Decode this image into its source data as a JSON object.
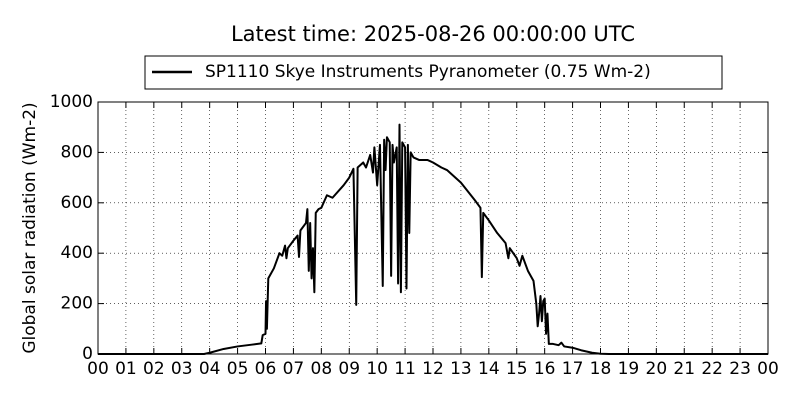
{
  "chart_data": {
    "type": "line",
    "title": "Latest time: 2025-08-26 00:00:00 UTC",
    "y_label": "Global solar radiation (Wm-2)",
    "x": [
      0,
      3.8,
      4.0,
      4.5,
      5,
      5.5,
      5.85,
      5.9,
      6.0,
      6.02,
      6.05,
      6.1,
      6.3,
      6.5,
      6.6,
      6.7,
      6.75,
      6.8,
      7.0,
      7.15,
      7.2,
      7.25,
      7.45,
      7.5,
      7.55,
      7.6,
      7.65,
      7.7,
      7.75,
      7.8,
      7.9,
      8.0,
      8.2,
      8.4,
      8.8,
      9.0,
      9.15,
      9.25,
      9.3,
      9.5,
      9.6,
      9.75,
      9.85,
      9.9,
      10.0,
      10.1,
      10.2,
      10.25,
      10.3,
      10.35,
      10.45,
      10.5,
      10.55,
      10.6,
      10.7,
      10.75,
      10.8,
      10.85,
      10.9,
      11.0,
      11.05,
      11.1,
      11.15,
      11.2,
      11.3,
      11.5,
      11.8,
      12.0,
      12.3,
      12.5,
      13.0,
      13.5,
      13.7,
      13.75,
      13.8,
      14.0,
      14.3,
      14.6,
      14.7,
      14.75,
      15.0,
      15.1,
      15.2,
      15.4,
      15.6,
      15.7,
      15.75,
      15.8,
      15.85,
      15.9,
      15.95,
      16.0,
      16.05,
      16.1,
      16.15,
      16.3,
      16.5,
      16.6,
      16.7,
      17.0,
      17.3,
      17.7,
      18.0,
      18.3,
      24
    ],
    "series": [
      {
        "name": "SP1110 Skye Instruments Pyranometer (0.75 Wm-2)",
        "color": "#000000",
        "values": [
          0,
          0,
          5,
          20,
          30,
          37,
          42,
          75,
          80,
          210,
          100,
          300,
          340,
          400,
          390,
          430,
          380,
          420,
          450,
          470,
          385,
          490,
          520,
          575,
          330,
          520,
          300,
          420,
          245,
          560,
          575,
          580,
          630,
          620,
          670,
          700,
          735,
          195,
          740,
          760,
          740,
          790,
          720,
          820,
          670,
          830,
          270,
          850,
          730,
          860,
          840,
          310,
          830,
          760,
          820,
          280,
          910,
          245,
          840,
          820,
          260,
          830,
          480,
          800,
          780,
          770,
          770,
          760,
          740,
          730,
          680,
          610,
          580,
          305,
          560,
          530,
          480,
          440,
          380,
          420,
          380,
          350,
          390,
          330,
          290,
          200,
          110,
          160,
          230,
          130,
          210,
          220,
          80,
          160,
          40,
          40,
          35,
          45,
          30,
          25,
          15,
          5,
          1,
          0,
          0
        ]
      }
    ],
    "xlim": [
      0,
      24
    ],
    "xticks": [
      {
        "value": 0,
        "label": "00"
      },
      {
        "value": 1,
        "label": "01"
      },
      {
        "value": 2,
        "label": "02"
      },
      {
        "value": 3,
        "label": "03"
      },
      {
        "value": 4,
        "label": "04"
      },
      {
        "value": 5,
        "label": "05"
      },
      {
        "value": 6,
        "label": "06"
      },
      {
        "value": 7,
        "label": "07"
      },
      {
        "value": 8,
        "label": "08"
      },
      {
        "value": 9,
        "label": "09"
      },
      {
        "value": 10,
        "label": "10"
      },
      {
        "value": 11,
        "label": "11"
      },
      {
        "value": 12,
        "label": "12"
      },
      {
        "value": 13,
        "label": "13"
      },
      {
        "value": 14,
        "label": "14"
      },
      {
        "value": 15,
        "label": "15"
      },
      {
        "value": 16,
        "label": "16"
      },
      {
        "value": 17,
        "label": "17"
      },
      {
        "value": 18,
        "label": "18"
      },
      {
        "value": 19,
        "label": "19"
      },
      {
        "value": 20,
        "label": "20"
      },
      {
        "value": 21,
        "label": "21"
      },
      {
        "value": 22,
        "label": "22"
      },
      {
        "value": 23,
        "label": "23"
      },
      {
        "value": 24,
        "label": "00"
      }
    ],
    "ylim": [
      0,
      1000
    ],
    "yticks": [
      0,
      200,
      400,
      600,
      800,
      1000
    ],
    "grid": true
  }
}
